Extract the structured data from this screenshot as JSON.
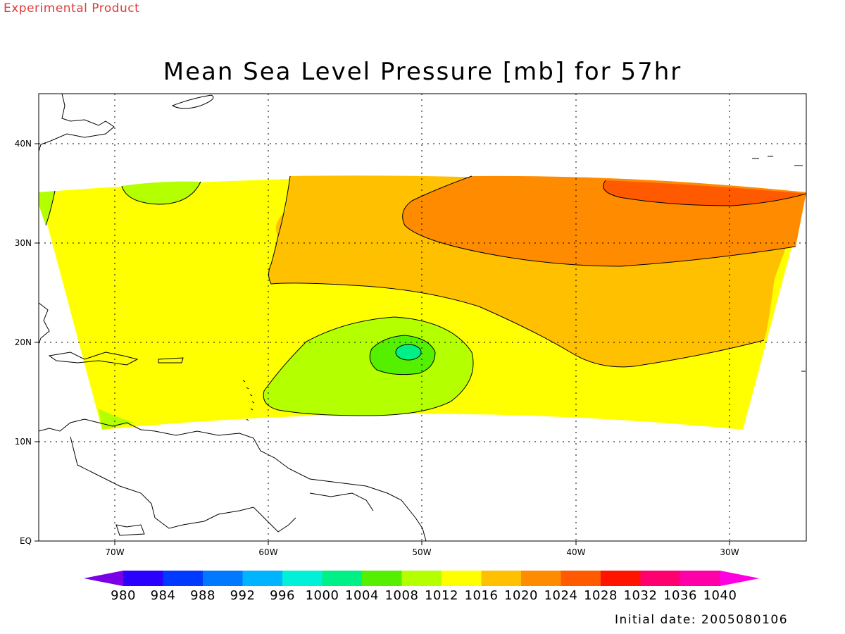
{
  "header": {
    "product_tag": "Experimental Product",
    "title": "Mean Sea Level Pressure [mb] for 57hr"
  },
  "map": {
    "lat_labels": [
      "EQ",
      "10N",
      "20N",
      "30N",
      "40N"
    ],
    "lon_labels": [
      "70W",
      "60W",
      "50W",
      "40W",
      "30W"
    ],
    "extent": {
      "lon": [
        -75,
        -25
      ],
      "lat": [
        0,
        45
      ]
    },
    "features": {
      "low_pressure_center": {
        "approx_lon": -51,
        "approx_lat": 19,
        "min_contour_mb": 1004
      },
      "high_pressure_region": {
        "approx_lon": -35,
        "approx_lat": 34,
        "max_contour_mb": 1028
      }
    },
    "gridlines": "dotted",
    "contour_interval_mb": 4
  },
  "colorbar": {
    "levels": [
      "980",
      "984",
      "988",
      "992",
      "996",
      "1000",
      "1004",
      "1008",
      "1012",
      "1016",
      "1020",
      "1024",
      "1028",
      "1032",
      "1036",
      "1040"
    ],
    "colors": [
      "#7a00e6",
      "#2b00ff",
      "#0039ff",
      "#0078ff",
      "#00b4ff",
      "#00f0d8",
      "#00f088",
      "#55f000",
      "#b4ff00",
      "#ffff00",
      "#ffc000",
      "#ff8c00",
      "#ff5a00",
      "#ff1400",
      "#ff0070",
      "#ff00a8",
      "#ff00e0"
    ]
  },
  "footer": {
    "initial_date": "Initial date: 2005080106"
  }
}
